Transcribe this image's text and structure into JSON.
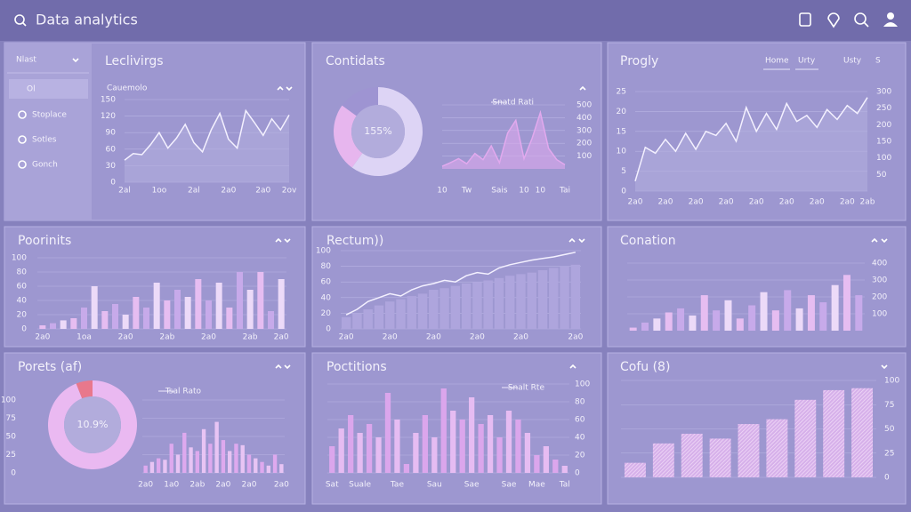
{
  "header": {
    "title": "Data analytics"
  },
  "sidebar": {
    "dropdown": "Nlast",
    "items": [
      "Ol",
      "Stoplace",
      "Sotles",
      "Gonch"
    ]
  },
  "tabs": [
    "Home",
    "Urty",
    "Usty",
    "S"
  ],
  "chart_data": [
    {
      "type": "line",
      "title": "Leclivirgs",
      "subtitle": "Cauemolo",
      "color": "#f4f1ff",
      "categories": [
        "2al",
        null,
        null,
        null,
        "1oo",
        null,
        null,
        null,
        "2al",
        null,
        null,
        null,
        "2a0",
        null,
        null,
        null,
        "2a0",
        null,
        null,
        "2ov"
      ],
      "values": [
        40,
        52,
        50,
        68,
        90,
        62,
        80,
        105,
        72,
        55,
        95,
        125,
        78,
        62,
        130,
        108,
        85,
        115,
        95,
        122
      ],
      "ylim": [
        0,
        150
      ],
      "yticks": [
        0,
        30,
        60,
        90,
        120,
        150
      ],
      "yaxis": "left"
    },
    {
      "type": "donut",
      "title": "Contidats",
      "center_label": "155%",
      "values": [
        60,
        25,
        15
      ],
      "colors": [
        "#ddd4f5",
        "#e7b6ee",
        "#9e94d2"
      ]
    },
    {
      "type": "area",
      "legend": "Snatd Rati",
      "color": "#e2a9ee",
      "categories": [
        "10",
        null,
        null,
        "Tw",
        null,
        null,
        null,
        "Sais",
        null,
        null,
        "10",
        null,
        "10",
        null,
        null,
        "Tai"
      ],
      "values": [
        20,
        48,
        80,
        40,
        120,
        72,
        180,
        48,
        280,
        380,
        80,
        240,
        440,
        160,
        72,
        32
      ],
      "ylim": [
        0,
        500
      ],
      "yticks": [
        100,
        200,
        300,
        400,
        500
      ],
      "yaxis": "right"
    },
    {
      "type": "line",
      "title": "Progly",
      "color": "#f4f1ff",
      "categories": [
        "2a0",
        null,
        null,
        "2a0",
        null,
        null,
        "2a0",
        null,
        null,
        "2a0",
        null,
        null,
        "2a0",
        null,
        null,
        "2a0",
        null,
        null,
        "2a0",
        null,
        null,
        "2a0",
        null,
        "2ab"
      ],
      "values": [
        2.5,
        11,
        9.5,
        13,
        10,
        14.5,
        10.5,
        15,
        14,
        17,
        12.5,
        21,
        15,
        19.5,
        15.5,
        22,
        17.5,
        19,
        16,
        20.5,
        18,
        21.5,
        19.5,
        23.5
      ],
      "ylim": [
        0,
        25
      ],
      "yticks": [
        0,
        5,
        10,
        15,
        20,
        25
      ],
      "yaxis": "left",
      "y2lim": [
        0,
        300
      ],
      "y2ticks": [
        50,
        100,
        150,
        200,
        250,
        300
      ]
    },
    {
      "type": "bar",
      "title": "Poorinits",
      "colors": [
        "#e6bdf1",
        "#c7aaea",
        "#ecdaf8"
      ],
      "categories": [
        "2a0",
        null,
        null,
        null,
        "1oa",
        null,
        null,
        null,
        "2a0",
        null,
        null,
        null,
        "2ab",
        null,
        null,
        null,
        "2a0",
        null,
        null,
        null,
        "2ab",
        null,
        null,
        "2a0"
      ],
      "values": [
        5,
        8,
        12,
        15,
        30,
        60,
        25,
        35,
        20,
        45,
        30,
        65,
        40,
        55,
        45,
        70,
        40,
        65,
        30,
        80,
        55,
        80,
        25,
        70
      ],
      "ylim": [
        0,
        100
      ],
      "yticks": [
        0,
        20,
        40,
        60,
        80,
        100
      ],
      "yaxis": "left"
    },
    {
      "type": "combo",
      "title": "Rectum))",
      "categories": [
        "2a0",
        null,
        null,
        null,
        "2a0",
        null,
        null,
        null,
        "2a0",
        null,
        null,
        null,
        "2a0",
        null,
        null,
        null,
        "2a0",
        null,
        null,
        null,
        null,
        "2a0"
      ],
      "series": [
        {
          "color": "#aea5dd",
          "values": [
            15,
            20,
            25,
            30,
            35,
            38,
            42,
            45,
            50,
            52,
            55,
            58,
            60,
            62,
            65,
            68,
            70,
            72,
            75,
            78,
            80,
            82
          ]
        },
        {
          "color": "#f4f1ff",
          "values": [
            18,
            25,
            35,
            40,
            45,
            42,
            50,
            55,
            58,
            62,
            60,
            68,
            72,
            70,
            78,
            82,
            85,
            88,
            90,
            92,
            95,
            98
          ]
        }
      ],
      "ylim": [
        0,
        100
      ],
      "yticks": [
        0,
        20,
        40,
        60,
        80,
        100
      ],
      "yaxis": "left"
    },
    {
      "type": "bar",
      "title": "Conation",
      "colors": [
        "#e6bdf1",
        "#c7aaea",
        "#ecdaf8"
      ],
      "values": [
        18,
        48,
        72,
        108,
        132,
        90,
        210,
        120,
        180,
        72,
        150,
        228,
        120,
        240,
        132,
        210,
        168,
        270,
        330,
        210
      ],
      "ylim": [
        0,
        400
      ],
      "yticks": [
        100,
        200,
        300,
        400
      ],
      "yaxis": "right"
    },
    {
      "type": "donut",
      "title": "Porets (af)",
      "center_label": "10.9%",
      "values": [
        94,
        6
      ],
      "colors": [
        "#eab9f1",
        "#e8788c"
      ]
    },
    {
      "type": "bar",
      "legend": "Tsal Rato",
      "colors": [
        "#dea9ee",
        "#e8c4f4"
      ],
      "categories": [
        "2a0",
        null,
        null,
        null,
        "1a0",
        null,
        null,
        null,
        "2ab",
        null,
        null,
        null,
        "2a0",
        null,
        null,
        null,
        "2a0",
        null,
        null,
        null,
        null,
        "2a0"
      ],
      "values": [
        10,
        15,
        20,
        18,
        40,
        25,
        55,
        35,
        30,
        60,
        40,
        70,
        45,
        30,
        40,
        38,
        25,
        20,
        15,
        10,
        25,
        12
      ],
      "ylim": [
        0,
        100
      ],
      "yticks": [
        0,
        25,
        50,
        75,
        100
      ],
      "yaxis": "left"
    },
    {
      "type": "bar",
      "title": "Poctitions",
      "legend": "Snalt Rte",
      "colors": [
        "#dba6ec",
        "#e6bcf2"
      ],
      "categories": [
        "Sat",
        null,
        null,
        "Suale",
        null,
        null,
        null,
        "Tae",
        null,
        null,
        null,
        "Sau",
        null,
        null,
        null,
        "Sae",
        null,
        null,
        null,
        "Sae",
        null,
        null,
        "Mae",
        null,
        null,
        "Tal"
      ],
      "values": [
        30,
        50,
        65,
        45,
        55,
        40,
        90,
        60,
        10,
        45,
        65,
        40,
        95,
        70,
        60,
        85,
        55,
        65,
        40,
        70,
        60,
        45,
        20,
        30,
        15,
        8
      ],
      "ylim": [
        0,
        100
      ],
      "yticks": [
        0,
        20,
        40,
        60,
        80,
        100
      ],
      "yaxis": "right"
    },
    {
      "type": "hatched",
      "title": "Cofu (8)",
      "color": "#e7c3ef",
      "values": [
        15,
        35,
        45,
        40,
        55,
        60,
        80,
        90,
        92
      ],
      "ylim": [
        0,
        100
      ],
      "yticks": [
        0,
        25,
        50,
        75,
        100
      ],
      "yaxis": "right"
    }
  ]
}
